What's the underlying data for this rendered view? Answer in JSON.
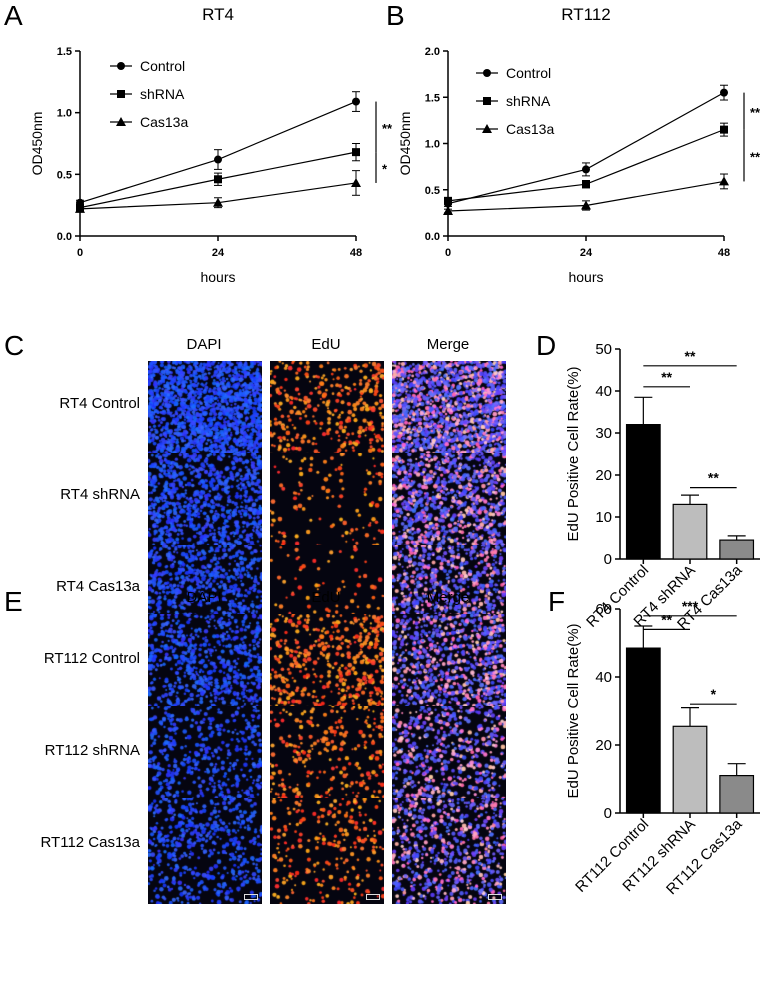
{
  "panels": {
    "A": "A",
    "B": "B",
    "C": "C",
    "D": "D",
    "E": "E",
    "F": "F"
  },
  "chart_data": [
    {
      "id": "A",
      "type": "line",
      "title": "RT4",
      "xlabel": "hours",
      "ylabel": "OD450nm",
      "x": [
        0,
        24,
        48
      ],
      "xticks": [
        "0",
        "24",
        "48"
      ],
      "yticks": [
        "0.0",
        "0.5",
        "1.0",
        "1.5"
      ],
      "xlim": [
        0,
        48
      ],
      "ylim": [
        0,
        1.5
      ],
      "legend_position": "top-left",
      "series": [
        {
          "name": "Control",
          "marker": "circle",
          "values": [
            0.27,
            0.62,
            1.09
          ],
          "errors": [
            0.02,
            0.08,
            0.08
          ]
        },
        {
          "name": "shRNA",
          "marker": "square",
          "values": [
            0.23,
            0.46,
            0.68
          ],
          "errors": [
            0.02,
            0.05,
            0.07
          ]
        },
        {
          "name": "Cas13a",
          "marker": "triangle",
          "values": [
            0.22,
            0.27,
            0.43
          ],
          "errors": [
            0.02,
            0.04,
            0.1
          ]
        }
      ],
      "significance": [
        {
          "label": "**",
          "from": 1.09,
          "to": 0.68
        },
        {
          "label": "*",
          "from": 0.68,
          "to": 0.43
        }
      ]
    },
    {
      "id": "B",
      "type": "line",
      "title": "RT112",
      "xlabel": "hours",
      "ylabel": "OD450nm",
      "x": [
        0,
        24,
        48
      ],
      "xticks": [
        "0",
        "24",
        "48"
      ],
      "yticks": [
        "0.0",
        "0.5",
        "1.0",
        "1.5",
        "2.0"
      ],
      "xlim": [
        0,
        48
      ],
      "ylim": [
        0,
        2.0
      ],
      "legend_position": "top-left",
      "series": [
        {
          "name": "Control",
          "marker": "circle",
          "values": [
            0.35,
            0.72,
            1.55
          ],
          "errors": [
            0.03,
            0.07,
            0.08
          ]
        },
        {
          "name": "shRNA",
          "marker": "square",
          "values": [
            0.38,
            0.56,
            1.15
          ],
          "errors": [
            0.03,
            0.04,
            0.07
          ]
        },
        {
          "name": "Cas13a",
          "marker": "triangle",
          "values": [
            0.27,
            0.33,
            0.59
          ],
          "errors": [
            0.02,
            0.05,
            0.08
          ]
        }
      ],
      "significance": [
        {
          "label": "**",
          "from": 1.55,
          "to": 1.15
        },
        {
          "label": "**",
          "from": 1.15,
          "to": 0.59
        }
      ]
    },
    {
      "id": "D",
      "type": "bar",
      "ylabel": "EdU Positive Cell Rate(%)",
      "categories": [
        "RT4 Control",
        "RT4 shRNA",
        "RT4 Cas13a"
      ],
      "values": [
        32,
        13,
        4.5
      ],
      "errors": [
        6.5,
        2.2,
        1.0
      ],
      "colors": [
        "#000000",
        "#bdbdbd",
        "#8a8a8a"
      ],
      "yticks": [
        "0",
        "10",
        "20",
        "30",
        "40",
        "50"
      ],
      "ylim": [
        0,
        50
      ],
      "significance": [
        {
          "label": "**",
          "a": 0,
          "b": 2,
          "y": 46
        },
        {
          "label": "**",
          "a": 0,
          "b": 1,
          "y": 41
        },
        {
          "label": "**",
          "a": 1,
          "b": 2,
          "y": 17
        }
      ]
    },
    {
      "id": "F",
      "type": "bar",
      "ylabel": "EdU Positive Cell Rate(%)",
      "categories": [
        "RT112 Control",
        "RT112 shRNA",
        "RT112 Cas13a"
      ],
      "values": [
        48.5,
        25.5,
        11
      ],
      "errors": [
        6.5,
        5.5,
        3.5
      ],
      "colors": [
        "#000000",
        "#bdbdbd",
        "#8a8a8a"
      ],
      "yticks": [
        "0",
        "20",
        "40",
        "60"
      ],
      "ylim": [
        0,
        60
      ],
      "significance": [
        {
          "label": "***",
          "a": 0,
          "b": 2,
          "y": 58
        },
        {
          "label": "**",
          "a": 0,
          "b": 1,
          "y": 54
        },
        {
          "label": "*",
          "a": 1,
          "b": 2,
          "y": 32
        }
      ]
    }
  ],
  "micro_C": {
    "columns": [
      "DAPI",
      "EdU",
      "Merge"
    ],
    "rows": [
      "RT4 Control",
      "RT4 shRNA",
      "RT4 Cas13a"
    ]
  },
  "micro_E": {
    "columns": [
      "DAPI",
      "EdU",
      "Merge"
    ],
    "rows": [
      "RT112 Control",
      "RT112 shRNA",
      "RT112 Cas13a"
    ]
  },
  "colors": {
    "dapi": "#1a2cff",
    "edu": "#ff3a12",
    "merge": "#6a3cff",
    "background": "#050510"
  }
}
